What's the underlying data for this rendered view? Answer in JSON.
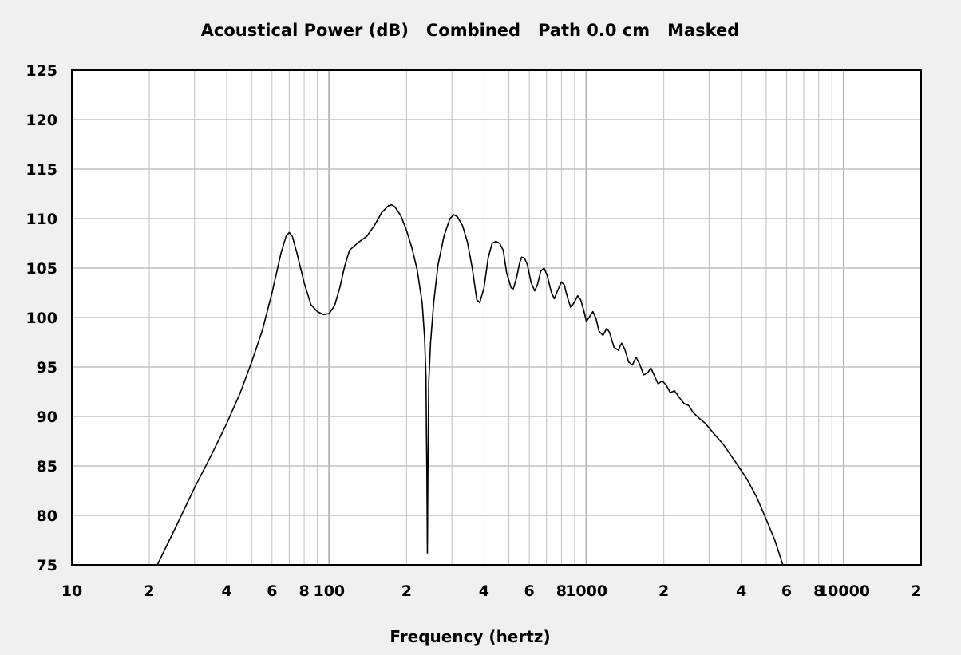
{
  "chart_data": {
    "type": "line",
    "title": "Acoustical Power (dB)   Combined   Path 0.0 cm   Masked",
    "xlabel": "Frequency (hertz)",
    "ylabel": "",
    "x_scale": "log",
    "xlim": [
      10,
      20000
    ],
    "ylim": [
      75,
      125
    ],
    "y_ticks": [
      75,
      80,
      85,
      90,
      95,
      100,
      105,
      110,
      115,
      120,
      125
    ],
    "x_ticks": [
      {
        "value": 10,
        "label": "10"
      },
      {
        "value": 20,
        "label": "2"
      },
      {
        "value": 40,
        "label": "4"
      },
      {
        "value": 60,
        "label": "6"
      },
      {
        "value": 80,
        "label": "8"
      },
      {
        "value": 100,
        "label": "100"
      },
      {
        "value": 200,
        "label": "2"
      },
      {
        "value": 400,
        "label": "4"
      },
      {
        "value": 600,
        "label": "6"
      },
      {
        "value": 800,
        "label": "8"
      },
      {
        "value": 1000,
        "label": "1000"
      },
      {
        "value": 2000,
        "label": "2"
      },
      {
        "value": 4000,
        "label": "4"
      },
      {
        "value": 6000,
        "label": "6"
      },
      {
        "value": 8000,
        "label": "8"
      },
      {
        "value": 10000,
        "label": "10000"
      },
      {
        "value": 20000,
        "label": "2"
      }
    ],
    "grid": true,
    "legend": "none",
    "line_color": "#000000",
    "grid_color": "#c0c0c0",
    "plot_background": "#ffffff",
    "series": [
      {
        "points": [
          [
            21.5,
            75.0
          ],
          [
            25,
            78.5
          ],
          [
            30,
            82.8
          ],
          [
            35,
            86.2
          ],
          [
            40,
            89.3
          ],
          [
            45,
            92.3
          ],
          [
            50,
            95.5
          ],
          [
            55,
            98.7
          ],
          [
            60,
            102.5
          ],
          [
            65,
            106.5
          ],
          [
            68,
            108.2
          ],
          [
            70,
            108.6
          ],
          [
            72,
            108.2
          ],
          [
            75,
            106.5
          ],
          [
            80,
            103.5
          ],
          [
            85,
            101.3
          ],
          [
            90,
            100.6
          ],
          [
            95,
            100.3
          ],
          [
            100,
            100.4
          ],
          [
            105,
            101.2
          ],
          [
            110,
            103.0
          ],
          [
            115,
            105.2
          ],
          [
            120,
            106.8
          ],
          [
            130,
            107.6
          ],
          [
            140,
            108.2
          ],
          [
            150,
            109.3
          ],
          [
            160,
            110.6
          ],
          [
            170,
            111.3
          ],
          [
            175,
            111.4
          ],
          [
            180,
            111.2
          ],
          [
            190,
            110.3
          ],
          [
            200,
            108.8
          ],
          [
            210,
            107.0
          ],
          [
            220,
            104.8
          ],
          [
            230,
            101.5
          ],
          [
            235,
            98.0
          ],
          [
            238,
            94.0
          ],
          [
            239,
            88.0
          ],
          [
            240,
            84.0
          ],
          [
            241,
            76.2
          ],
          [
            242,
            84.0
          ],
          [
            244,
            93.5
          ],
          [
            248,
            97.5
          ],
          [
            255,
            101.5
          ],
          [
            265,
            105.3
          ],
          [
            280,
            108.3
          ],
          [
            295,
            110.0
          ],
          [
            305,
            110.4
          ],
          [
            315,
            110.2
          ],
          [
            330,
            109.3
          ],
          [
            345,
            107.6
          ],
          [
            360,
            105.0
          ],
          [
            375,
            101.8
          ],
          [
            385,
            101.5
          ],
          [
            400,
            103.0
          ],
          [
            415,
            106.0
          ],
          [
            430,
            107.5
          ],
          [
            445,
            107.7
          ],
          [
            460,
            107.5
          ],
          [
            475,
            106.8
          ],
          [
            490,
            104.5
          ],
          [
            510,
            103.0
          ],
          [
            520,
            102.9
          ],
          [
            535,
            104.0
          ],
          [
            550,
            105.5
          ],
          [
            560,
            106.1
          ],
          [
            575,
            106.0
          ],
          [
            590,
            105.3
          ],
          [
            610,
            103.5
          ],
          [
            630,
            102.7
          ],
          [
            645,
            103.3
          ],
          [
            665,
            104.7
          ],
          [
            685,
            105.0
          ],
          [
            705,
            104.2
          ],
          [
            730,
            102.6
          ],
          [
            750,
            101.9
          ],
          [
            775,
            102.8
          ],
          [
            800,
            103.6
          ],
          [
            820,
            103.3
          ],
          [
            845,
            102.0
          ],
          [
            870,
            101.0
          ],
          [
            900,
            101.6
          ],
          [
            925,
            102.2
          ],
          [
            950,
            101.8
          ],
          [
            975,
            100.8
          ],
          [
            1000,
            99.6
          ],
          [
            1030,
            100.1
          ],
          [
            1060,
            100.6
          ],
          [
            1090,
            99.9
          ],
          [
            1120,
            98.6
          ],
          [
            1160,
            98.2
          ],
          [
            1200,
            98.9
          ],
          [
            1230,
            98.5
          ],
          [
            1280,
            97.0
          ],
          [
            1330,
            96.7
          ],
          [
            1370,
            97.4
          ],
          [
            1410,
            96.8
          ],
          [
            1460,
            95.5
          ],
          [
            1510,
            95.2
          ],
          [
            1560,
            96.0
          ],
          [
            1610,
            95.3
          ],
          [
            1670,
            94.2
          ],
          [
            1730,
            94.4
          ],
          [
            1780,
            94.9
          ],
          [
            1840,
            94.1
          ],
          [
            1900,
            93.3
          ],
          [
            1970,
            93.6
          ],
          [
            2040,
            93.2
          ],
          [
            2120,
            92.4
          ],
          [
            2200,
            92.6
          ],
          [
            2300,
            91.9
          ],
          [
            2400,
            91.3
          ],
          [
            2500,
            91.1
          ],
          [
            2600,
            90.4
          ],
          [
            2750,
            89.8
          ],
          [
            2900,
            89.3
          ],
          [
            3100,
            88.4
          ],
          [
            3400,
            87.2
          ],
          [
            3800,
            85.4
          ],
          [
            4200,
            83.7
          ],
          [
            4600,
            81.8
          ],
          [
            5000,
            79.6
          ],
          [
            5400,
            77.5
          ],
          [
            5800,
            75.0
          ]
        ]
      }
    ]
  }
}
